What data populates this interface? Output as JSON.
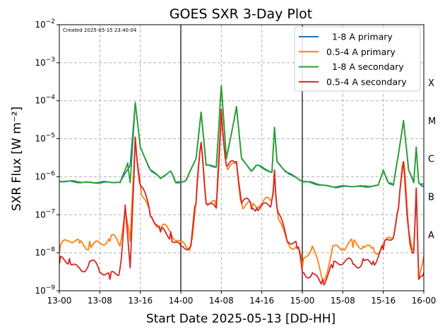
{
  "chart_data": {
    "type": "line",
    "title": "GOES SXR 3-Day Plot",
    "created_note": "Created 2025-05-15 23:40:04",
    "xlabel": "Start Date 2025-05-13 [DD-HH]",
    "ylabel": "SXR Flux [W m⁻²]",
    "x_ticks": [
      "13-00",
      "13-08",
      "13-16",
      "14-00",
      "14-08",
      "14-16",
      "15-00",
      "15-08",
      "15-16",
      "16-00"
    ],
    "x_range_hours": [
      0,
      72
    ],
    "y_scale": "log",
    "ylim": [
      1e-09,
      0.01
    ],
    "y_ticks": [
      {
        "value": 1e-09,
        "base": "10",
        "exp": "−9"
      },
      {
        "value": 1e-08,
        "base": "10",
        "exp": "−8"
      },
      {
        "value": 1e-07,
        "base": "10",
        "exp": "−7"
      },
      {
        "value": 1e-06,
        "base": "10",
        "exp": "−6"
      },
      {
        "value": 1e-05,
        "base": "10",
        "exp": "−5"
      },
      {
        "value": 0.0001,
        "base": "10",
        "exp": "−4"
      },
      {
        "value": 0.001,
        "base": "10",
        "exp": "−3"
      },
      {
        "value": 0.01,
        "base": "10",
        "exp": "−2"
      }
    ],
    "flare_classes": [
      {
        "label": "A",
        "value": 3e-08
      },
      {
        "label": "B",
        "value": 3e-07
      },
      {
        "label": "C",
        "value": 3e-06
      },
      {
        "label": "M",
        "value": 3e-05
      },
      {
        "label": "X",
        "value": 0.0003
      }
    ],
    "day_boundaries_hours": [
      24,
      48
    ],
    "grid": true,
    "legend_position": "top-right",
    "series": [
      {
        "name": "  1-8 A primary",
        "color": "#1f77b4",
        "points": [
          [
            0,
            7.5e-07
          ],
          [
            6,
            7.2e-07
          ],
          [
            12,
            7e-07
          ],
          [
            14,
            2e-06
          ],
          [
            15,
            9e-05
          ],
          [
            16,
            6e-06
          ],
          [
            18,
            1.5e-06
          ],
          [
            20,
            9e-07
          ],
          [
            22,
            1.4e-06
          ],
          [
            23,
            7e-07
          ],
          [
            25,
            8e-07
          ],
          [
            27,
            3e-06
          ],
          [
            28,
            5e-05
          ],
          [
            29,
            2e-06
          ],
          [
            31,
            1.8e-06
          ],
          [
            32,
            0.00025
          ],
          [
            33,
            3e-06
          ],
          [
            35,
            7e-05
          ],
          [
            36,
            3e-06
          ],
          [
            38,
            1.4e-06
          ],
          [
            39,
            2e-06
          ],
          [
            42,
            1.3e-06
          ],
          [
            42.5,
            2e-05
          ],
          [
            43,
            2.5e-06
          ],
          [
            45,
            1.3e-06
          ],
          [
            48,
            7.5e-07
          ],
          [
            54,
            5.5e-07
          ],
          [
            60,
            5.5e-07
          ],
          [
            63,
            6e-07
          ],
          [
            64,
            1.5e-06
          ],
          [
            65,
            7e-07
          ],
          [
            66,
            6e-07
          ],
          [
            67,
            4e-06
          ],
          [
            68,
            3e-05
          ],
          [
            69,
            1.5e-06
          ],
          [
            70,
            7e-07
          ],
          [
            70.5,
            6e-06
          ],
          [
            71,
            7e-07
          ],
          [
            72,
            5.5e-07
          ]
        ]
      },
      {
        "name": "0.5-4 A primary",
        "color": "#ff7f0e",
        "points": [
          [
            0,
            1e-08
          ],
          [
            2,
            2e-08
          ],
          [
            4,
            1.8e-08
          ],
          [
            6,
            2e-08
          ],
          [
            8,
            1.8e-08
          ],
          [
            10,
            2e-08
          ],
          [
            12,
            1.5e-08
          ],
          [
            13,
            1.5e-07
          ],
          [
            14,
            2e-08
          ],
          [
            15,
            1.1e-05
          ],
          [
            16,
            6e-07
          ],
          [
            18,
            9e-08
          ],
          [
            20,
            3.5e-08
          ],
          [
            22,
            3.5e-08
          ],
          [
            24,
            2e-08
          ],
          [
            26,
            1.8e-08
          ],
          [
            27,
            2e-07
          ],
          [
            28,
            8e-06
          ],
          [
            29,
            2e-07
          ],
          [
            31,
            1.5e-07
          ],
          [
            32,
            6e-05
          ],
          [
            33,
            2e-06
          ],
          [
            35,
            2.5e-06
          ],
          [
            36,
            2e-07
          ],
          [
            38,
            1.4e-07
          ],
          [
            39,
            1.5e-07
          ],
          [
            42,
            2.5e-07
          ],
          [
            42.5,
            1.5e-06
          ],
          [
            43,
            1.5e-07
          ],
          [
            45,
            2e-08
          ],
          [
            47,
            1.3e-08
          ],
          [
            48,
            4e-09
          ],
          [
            50,
            1.5e-08
          ],
          [
            52,
            2e-09
          ],
          [
            54,
            1.5e-08
          ],
          [
            56,
            1.3e-08
          ],
          [
            58,
            1.4e-08
          ],
          [
            60,
            1.5e-08
          ],
          [
            62,
            1.4e-08
          ],
          [
            64,
            1.7e-08
          ],
          [
            66,
            2.5e-08
          ],
          [
            67,
            1.5e-07
          ],
          [
            68,
            2.5e-06
          ],
          [
            69,
            4e-08
          ],
          [
            70,
            1.2e-08
          ],
          [
            70.5,
            5e-07
          ],
          [
            71,
            2e-09
          ],
          [
            72,
            8e-09
          ]
        ]
      },
      {
        "name": "  1-8 A secondary",
        "color": "#2ca02c",
        "points": [
          [
            0,
            7.5e-07
          ],
          [
            6,
            7.2e-07
          ],
          [
            12,
            7e-07
          ],
          [
            13.5,
            2.3e-06
          ],
          [
            14,
            7e-07
          ],
          [
            15,
            9e-05
          ],
          [
            16,
            6e-06
          ],
          [
            18,
            1.5e-06
          ],
          [
            20,
            9e-07
          ],
          [
            22,
            1.4e-06
          ],
          [
            23,
            7e-07
          ],
          [
            25,
            8e-07
          ],
          [
            27,
            3e-06
          ],
          [
            28,
            5e-05
          ],
          [
            29,
            2e-06
          ],
          [
            31,
            1.8e-06
          ],
          [
            32,
            0.00025
          ],
          [
            33,
            3e-06
          ],
          [
            35,
            7e-05
          ],
          [
            36,
            3e-06
          ],
          [
            38,
            1.4e-06
          ],
          [
            39,
            2e-06
          ],
          [
            42,
            1.3e-06
          ],
          [
            42.5,
            2e-05
          ],
          [
            43,
            2.5e-06
          ],
          [
            45,
            1.3e-06
          ],
          [
            48,
            7.5e-07
          ],
          [
            54,
            5.5e-07
          ],
          [
            60,
            5.5e-07
          ],
          [
            63,
            6e-07
          ],
          [
            64,
            1.5e-06
          ],
          [
            65,
            7e-07
          ],
          [
            66,
            6e-07
          ],
          [
            67,
            4e-06
          ],
          [
            68,
            3e-05
          ],
          [
            69,
            1.5e-06
          ],
          [
            70,
            7e-07
          ],
          [
            70.5,
            6e-06
          ],
          [
            71,
            7e-07
          ],
          [
            72,
            6.5e-07
          ]
        ]
      },
      {
        "name": "0.5-4 A secondary",
        "color": "#d62728",
        "points": [
          [
            0,
            5e-09
          ],
          [
            2,
            7e-09
          ],
          [
            4,
            4e-09
          ],
          [
            6,
            6e-09
          ],
          [
            8,
            3e-09
          ],
          [
            10,
            2e-09
          ],
          [
            12,
            4e-09
          ],
          [
            13,
            1.8e-07
          ],
          [
            14,
            4e-09
          ],
          [
            15,
            1.1e-05
          ],
          [
            16,
            6e-07
          ],
          [
            18,
            9e-08
          ],
          [
            20,
            3.5e-08
          ],
          [
            22,
            3.5e-08
          ],
          [
            24,
            1.5e-08
          ],
          [
            26,
            1.5e-08
          ],
          [
            27,
            2e-07
          ],
          [
            28,
            8e-06
          ],
          [
            29,
            2e-07
          ],
          [
            31,
            1.5e-07
          ],
          [
            32,
            6e-05
          ],
          [
            33,
            2e-06
          ],
          [
            35,
            2.5e-06
          ],
          [
            36,
            2e-07
          ],
          [
            38,
            1.4e-07
          ],
          [
            39,
            1.5e-07
          ],
          [
            42,
            2.5e-07
          ],
          [
            42.5,
            1.5e-06
          ],
          [
            43,
            1.5e-07
          ],
          [
            45,
            2e-08
          ],
          [
            47,
            1.3e-08
          ],
          [
            48,
            3e-09
          ],
          [
            50,
            3e-09
          ],
          [
            52,
            2e-09
          ],
          [
            54,
            4e-09
          ],
          [
            56,
            5e-09
          ],
          [
            58,
            5e-09
          ],
          [
            60,
            7e-09
          ],
          [
            62,
            6e-09
          ],
          [
            64,
            1.2e-08
          ],
          [
            66,
            2.5e-08
          ],
          [
            67,
            1.5e-07
          ],
          [
            68,
            2.5e-06
          ],
          [
            69,
            4e-08
          ],
          [
            70,
            1e-08
          ],
          [
            70.5,
            5e-07
          ],
          [
            71,
            2e-09
          ],
          [
            72,
            3e-09
          ]
        ]
      }
    ]
  }
}
